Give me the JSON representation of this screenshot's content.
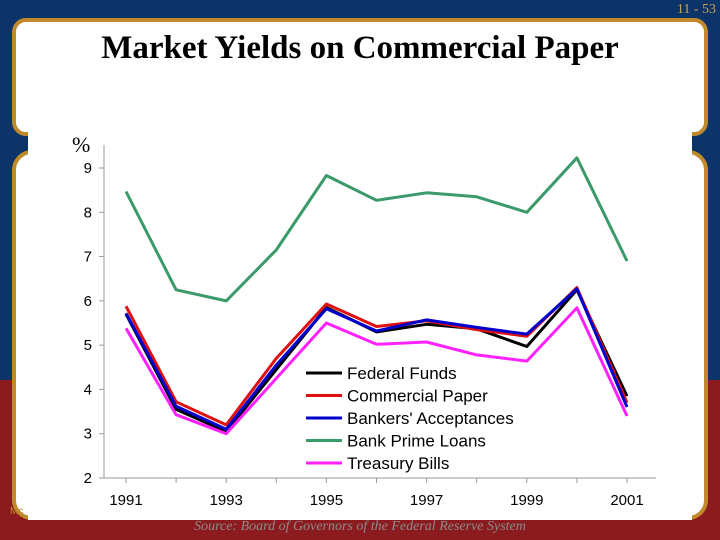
{
  "slide": {
    "title": "Market Yields on Commercial Paper",
    "page_number": "11 - 53",
    "left_text": "Mc",
    "source": "Source: Board of Governors of the Federal Reserve System",
    "unit_label": "%"
  },
  "chart_data": {
    "type": "line",
    "title": "Market Yields on Commercial Paper",
    "ylabel": "%",
    "ylim": [
      2,
      9
    ],
    "xlim": [
      1991,
      2001
    ],
    "x": [
      1991,
      1992,
      1993,
      1994,
      1995,
      1996,
      1997,
      1998,
      1999,
      2000,
      2001
    ],
    "x_tick_labels": [
      "1991",
      "1993",
      "1995",
      "1997",
      "1999",
      "2001"
    ],
    "y_tick_labels": [
      "2",
      "3",
      "4",
      "5",
      "6",
      "7",
      "8",
      "9"
    ],
    "legend_position": "center-bottom",
    "series": [
      {
        "name": "Federal Funds",
        "color": "#000000",
        "values": [
          5.7,
          3.55,
          3.05,
          4.45,
          5.85,
          5.3,
          5.47,
          5.37,
          4.97,
          6.25,
          3.85
        ]
      },
      {
        "name": "Commercial Paper",
        "color": "#e01010",
        "values": [
          5.88,
          3.72,
          3.2,
          4.7,
          5.93,
          5.42,
          5.55,
          5.35,
          5.2,
          6.3,
          3.7
        ]
      },
      {
        "name": "Bankers' Acceptances",
        "color": "#0000cc",
        "values": [
          5.72,
          3.62,
          3.1,
          4.55,
          5.82,
          5.32,
          5.57,
          5.4,
          5.25,
          6.27,
          3.6
        ]
      },
      {
        "name": "Bank Prime Loans",
        "color": "#3a9a6a",
        "values": [
          8.47,
          6.25,
          6.0,
          7.15,
          8.83,
          8.27,
          8.44,
          8.35,
          8.0,
          9.23,
          6.9
        ]
      },
      {
        "name": "Treasury Bills",
        "color": "#ff22ff",
        "values": [
          5.38,
          3.43,
          3.0,
          4.25,
          5.5,
          5.02,
          5.07,
          4.78,
          4.64,
          5.84,
          3.4
        ]
      }
    ]
  }
}
